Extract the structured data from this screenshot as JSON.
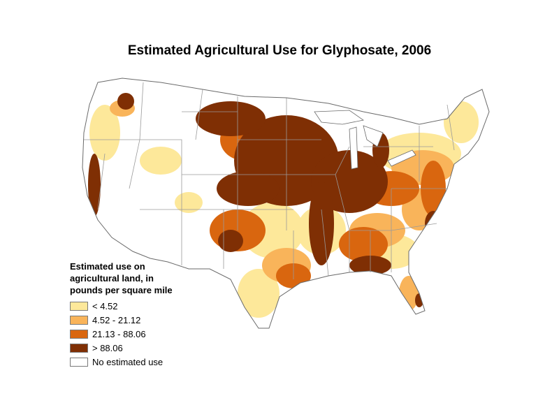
{
  "title": "Estimated Agricultural Use for Glyphosate, 2006",
  "legend": {
    "heading": "Estimated use on\nagricultural land, in\npounds per square mile",
    "classes": [
      {
        "label": "< 4.52",
        "color": "#fde89a"
      },
      {
        "label": "4.52 - 21.12",
        "color": "#f9b45a"
      },
      {
        "label": "21.13 - 88.06",
        "color": "#d9660f"
      },
      {
        "label": "> 88.06",
        "color": "#7f2f04"
      },
      {
        "label": "No estimated use",
        "color": "#ffffff"
      }
    ]
  },
  "colors": {
    "boundary": "#9a9a9a",
    "outline": "#6a6a6a"
  }
}
